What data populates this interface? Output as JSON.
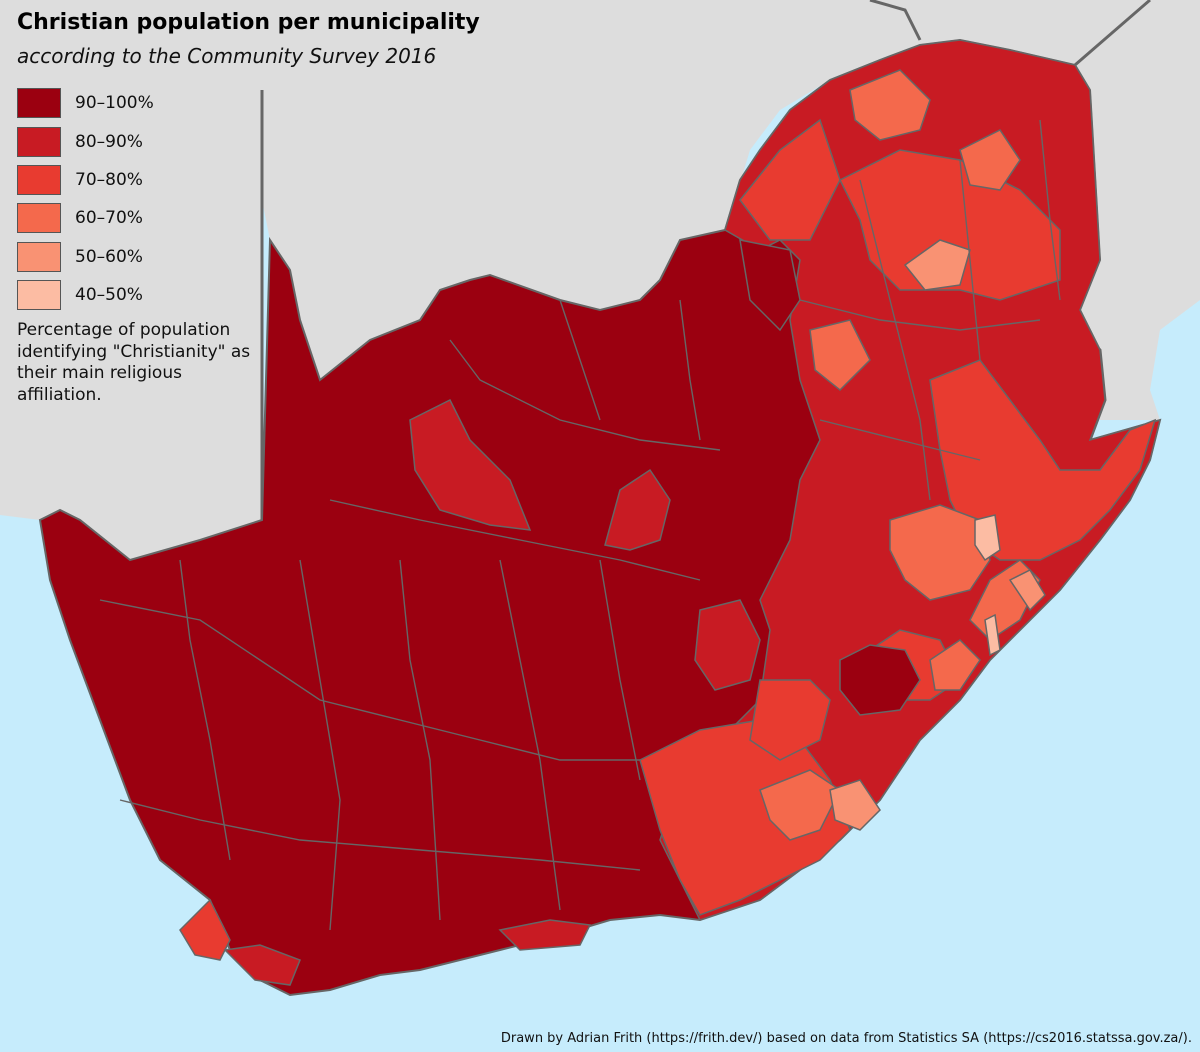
{
  "title": "Christian population per municipality",
  "subtitle": "according to the Community Survey 2016",
  "legend": {
    "items": [
      {
        "label": "90–100%",
        "color": "#9b0010"
      },
      {
        "label": "80–90%",
        "color": "#c81b23"
      },
      {
        "label": "70–80%",
        "color": "#e83b30"
      },
      {
        "label": "60–70%",
        "color": "#f4694c"
      },
      {
        "label": "50–60%",
        "color": "#f99273"
      },
      {
        "label": "40–50%",
        "color": "#fcbca3"
      }
    ]
  },
  "note": "Percentage of population identifying \"Christianity\" as their main religious affiliation.",
  "credit": "Drawn by Adrian Frith (https://frith.dev/) based on data from Statistics SA (https://cs2016.statssa.gov.za/).",
  "colors": {
    "ocean": "#c6ecfc",
    "land_other": "#dddddd",
    "border": "#666666"
  }
}
